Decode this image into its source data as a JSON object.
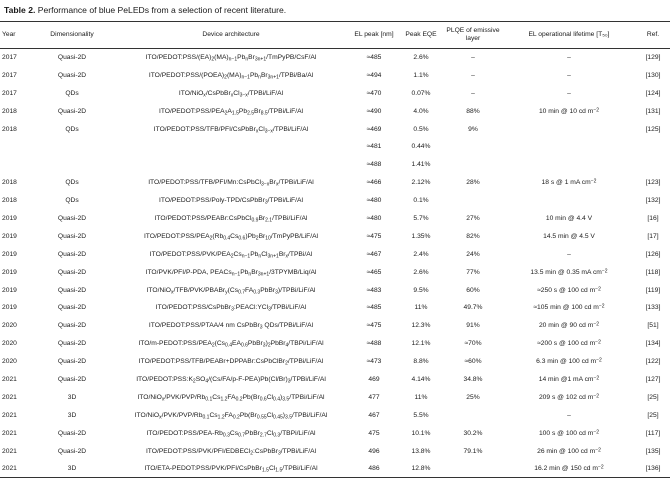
{
  "table": {
    "label": "Table 2.",
    "title": "Performance of blue PeLEDs from a selection of recent literature.",
    "headers": {
      "year": "Year",
      "dimensionality": "Dimensionality",
      "device": "Device architecture",
      "el_peak": "EL peak [nm]",
      "peak_eqe": "Peak EQE",
      "plqe": "PLQE of emissive layer",
      "lifetime": "EL operational lifetime [T₅₀]",
      "ref": "Ref."
    },
    "rows": [
      {
        "year": "2017",
        "dim": "Quasi-2D",
        "device": "ITO/PEDOT:PSS/(EA)<sub>2</sub>(MA)<sub>n−1</sub>Pb<sub>n</sub>Br<sub>3n+1</sub>/TmPyPB/CsF/Al",
        "el": "≈485",
        "eqe": "2.6%",
        "plqe": "–",
        "life": "–",
        "ref": "[129]"
      },
      {
        "year": "2017",
        "dim": "Quasi-2D",
        "device": "ITO/PEDOT:PSS/(POEA)<sub>2</sub>(MA)<sub>n−1</sub>Pb<sub>n</sub>Br<sub>3n+1</sub>/TPBi/Ba/Al",
        "el": "≈494",
        "eqe": "1.1%",
        "plqe": "–",
        "life": "–",
        "ref": "[130]"
      },
      {
        "year": "2017",
        "dim": "QDs",
        "device": "ITO/NiO<sub>x</sub>/CsPbBr<sub>x</sub>Cl<sub>3−x</sub>/TPBi/LiF/Al",
        "el": "≈470",
        "eqe": "0.07%",
        "plqe": "–",
        "life": "–",
        "ref": "[124]"
      },
      {
        "year": "2018",
        "dim": "Quasi-2D",
        "device": "ITO/PEDOT:PSS/PEA<sub>2</sub>A<sub>1.5</sub>Pb<sub>2.5</sub>Br<sub>8.5</sub>/TPBi/LiF/Al",
        "el": "≈490",
        "eqe": "4.0%",
        "plqe": "88%",
        "life": "10 min @ 10 cd m<sup>−2</sup>",
        "ref": "[131]"
      },
      {
        "year": "2018",
        "dim": "QDs",
        "device": "ITO/PEDOT:PSS/TFB/PFI/CsPbBr<sub>x</sub>Cl<sub>3−x</sub>/TPBi/LiF/Al",
        "el": "≈469",
        "eqe": "0.5%",
        "plqe": "9%",
        "life": "",
        "ref": "[125]"
      },
      {
        "year": "",
        "dim": "",
        "device": "",
        "el": "≈481",
        "eqe": "0.44%",
        "plqe": "",
        "life": "",
        "ref": ""
      },
      {
        "year": "",
        "dim": "",
        "device": "",
        "el": "≈488",
        "eqe": "1.41%",
        "plqe": "",
        "life": "",
        "ref": ""
      },
      {
        "year": "2018",
        "dim": "QDs",
        "device": "ITO/PEDOT:PSS/TFB/PFI/Mn:CsPbCl<sub>3−x</sub>Br<sub>x</sub>/TPBi/LiF/Al",
        "el": "≈466",
        "eqe": "2.12%",
        "plqe": "28%",
        "life": "18 s @ 1 mA cm<sup>−2</sup>",
        "ref": "[123]"
      },
      {
        "year": "2018",
        "dim": "QDs",
        "device": "ITO/PEDOT:PSS/Poly-TPD/CsPbBr<sub>3</sub>/TPBi/LiF/Al",
        "el": "≈480",
        "eqe": "0.1%",
        "plqe": "",
        "life": "",
        "ref": "[132]"
      },
      {
        "year": "2019",
        "dim": "Quasi-2D",
        "device": "ITO/PEDOT:PSS/PEABr:CsPbCl<sub>0.9</sub>Br<sub>2.1</sub>/TPBi/LiF/Al",
        "el": "≈480",
        "eqe": "5.7%",
        "plqe": "27%",
        "life": "10 min @ 4.4 V",
        "ref": "[16]"
      },
      {
        "year": "2019",
        "dim": "Quasi-2D",
        "device": "ITO/PEDOT:PSS/PEA<sub>2</sub>(Rb<sub>0.4</sub>Cs<sub>0.6</sub>)Pb<sub>2</sub>Br<sub>10</sub>/TmPyPB/LiF/Al",
        "el": "≈475",
        "eqe": "1.35%",
        "plqe": "82%",
        "life": "14.5 min @ 4.5 V",
        "ref": "[17]"
      },
      {
        "year": "2019",
        "dim": "Quasi-2D",
        "device": "ITO/PEDOT:PSS/PVK/PEA<sub>2</sub>Cs<sub>n−1</sub>Pb<sub>n</sub>Cl<sub>3n+1</sub>Br<sub>x</sub>/TPBi/Al",
        "el": "≈467",
        "eqe": "2.4%",
        "plqe": "24%",
        "life": "–",
        "ref": "[126]"
      },
      {
        "year": "2019",
        "dim": "Quasi-2D",
        "device": "ITO/PVK/PFI/P-PDA, PEACs<sub>n−1</sub>Pb<sub>n</sub>Br<sub>3n+1</sub>/3TPYMB/Liq/Al",
        "el": "≈465",
        "eqe": "2.6%",
        "plqe": "77%",
        "life": "13.5 min @ 0.35 mA cm<sup>−2</sup>",
        "ref": "[118]"
      },
      {
        "year": "2019",
        "dim": "Quasi-2D",
        "device": "ITO/NiO<sub>x</sub>/TFB/PVK/PBABr<sub>y</sub>(Cs<sub>0.7</sub>FA<sub>0.3</sub>PbBr<sub>3</sub>)/TPBi/LiF/Al",
        "el": "≈483",
        "eqe": "9.5%",
        "plqe": "60%",
        "life": "≈250 s @ 100 cd m<sup>−2</sup>",
        "ref": "[119]"
      },
      {
        "year": "2019",
        "dim": "Quasi-2D",
        "device": "ITO/PEDOT:PSS/CsPbBr<sub>3</sub>:PEACl:YCl<sub>3</sub>/TPBi/LiF/Al",
        "el": "≈485",
        "eqe": "11%",
        "plqe": "49.7%",
        "life": "≈105 min @ 100 cd m<sup>−2</sup>",
        "ref": "[133]"
      },
      {
        "year": "2020",
        "dim": "Quasi-2D",
        "device": "ITO/PEDOT:PSS/PTAA/4 nm CsPbBr<sub>3</sub> QDs/TPBi/LiF/Al",
        "el": "≈475",
        "eqe": "12.3%",
        "plqe": "91%",
        "life": "20 min @ 90 cd m<sup>−2</sup>",
        "ref": "[51]"
      },
      {
        "year": "2020",
        "dim": "Quasi-2D",
        "device": "ITO/m-PEDOT:PSS/PEA<sub>2</sub>(Cs<sub>0.4</sub>EA<sub>0.6</sub>PbBr<sub>3</sub>)<sub>2</sub>PbBr<sub>4</sub>/TBPi/LiF/Al",
        "el": "≈488",
        "eqe": "12.1%",
        "plqe": "≈70%",
        "life": "≈200 s @ 100 cd m<sup>−2</sup>",
        "ref": "[134]"
      },
      {
        "year": "2020",
        "dim": "Quasi-2D",
        "device": "ITO/PEDOT:PSS/TFB/PEABr+DPPABr:CsPbClBr<sub>2</sub>/TPBi/LiF/Al",
        "el": "≈473",
        "eqe": "8.8%",
        "plqe": "≈60%",
        "life": "6.3 min @ 100 cd m<sup>−2</sup>",
        "ref": "[122]"
      },
      {
        "year": "2021",
        "dim": "Quasi-2D",
        "device": "ITO/PEDOT:PSS:K<sub>2</sub>SO<sub>4</sub>/(Cs/FA/p-F-PEA)Pb(Cl/Br)<sub>3</sub>/TPBi/LiF/Al",
        "el": "469",
        "eqe": "4.14%",
        "plqe": "34.8%",
        "life": "14 min @1 mA cm<sup>−2</sup>",
        "ref": "[127]"
      },
      {
        "year": "2021",
        "dim": "3D",
        "device": "ITO/NiO<sub>x</sub>/PVK/PVP/Rb<sub>0.1</sub>Cs<sub>1.2</sub>FA<sub>0.2</sub>Pb(Br<sub>0.6</sub>Cl<sub>0.4</sub>)<sub>3.5</sub>/TPBi/LiF/Al",
        "el": "477",
        "eqe": "11%",
        "plqe": "25%",
        "life": "209 s @ 102 cd m<sup>−2</sup>",
        "ref": "[25]"
      },
      {
        "year": "2021",
        "dim": "3D",
        "device": "ITO/NiO<sub>x</sub>/PVK/PVP/Rb<sub>0.1</sub>Cs<sub>1.2</sub>FA<sub>0.2</sub>Pb(Br<sub>0.55</sub>Cl<sub>0.45</sub>)<sub>3.5</sub>/TPBi/LiF/Al",
        "el": "467",
        "eqe": "5.5%",
        "plqe": "",
        "life": "–",
        "ref": "[25]"
      },
      {
        "year": "2021",
        "dim": "Quasi-2D",
        "device": "ITO/PEDOT:PSS/PEA-Rb<sub>0.3</sub>Cs<sub>0.7</sub>PbBr<sub>2.7</sub>Cl<sub>0.3</sub>/TBPi/LiF/Al",
        "el": "475",
        "eqe": "10.1%",
        "plqe": "30.2%",
        "life": "100 s @ 100 cd m<sup>−2</sup>",
        "ref": "[117]"
      },
      {
        "year": "2021",
        "dim": "Quasi-2D",
        "device": "ITO/PEDOT:PSS/PVK/PFI/EDBECl<sub>2</sub>:CsPbBr<sub>3</sub>/TPBi/LiF/Al",
        "el": "496",
        "eqe": "13.8%",
        "plqe": "79.1%",
        "life": "26 min @ 100 cd m<sup>−2</sup>",
        "ref": "[135]"
      },
      {
        "year": "2021",
        "dim": "3D",
        "device": "ITO/ETA-PEDOT:PSS/PVK/PFI/CsPbBr<sub>1.5</sub>Cl<sub>1.5</sub>/TPBi/LiF/Al",
        "el": "486",
        "eqe": "12.8%",
        "plqe": "",
        "life": "16.2 min @ 150 cd m<sup>−2</sup>",
        "ref": "[136]"
      }
    ]
  }
}
